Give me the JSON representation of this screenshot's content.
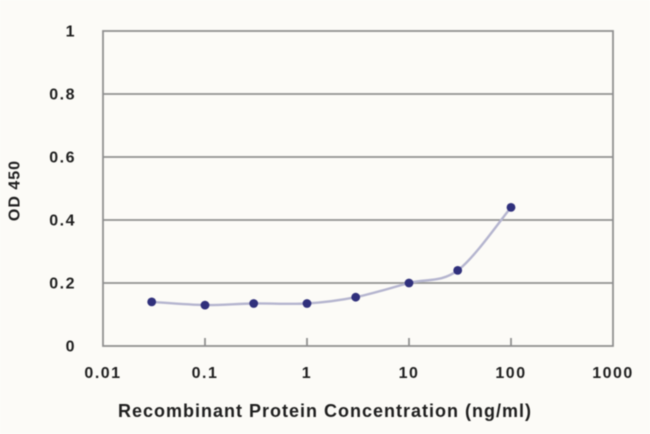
{
  "figure": {
    "background": "#fcfbf7"
  },
  "chart_data": {
    "type": "line",
    "title": "",
    "xlabel": "Recombinant Protein Concentration (ng/ml)",
    "ylabel": "OD 450",
    "x_scale": "log",
    "y_scale": "linear",
    "xlim": [
      0.01,
      1000
    ],
    "ylim": [
      0,
      1
    ],
    "x_ticks": [
      0.01,
      0.1,
      1,
      10,
      100,
      1000
    ],
    "x_tick_labels": [
      "0.01",
      "0.1",
      "1",
      "10",
      "100",
      "1000"
    ],
    "y_ticks": [
      0,
      0.2,
      0.4,
      0.6,
      0.8,
      1
    ],
    "y_tick_labels": [
      "0",
      "0.2",
      "0.4",
      "0.6",
      "0.8",
      "1"
    ],
    "grid": "horizontal",
    "legend": "none",
    "series": [
      {
        "name": "OD 450",
        "x": [
          0.03,
          0.1,
          0.3,
          1,
          3,
          10,
          30,
          100
        ],
        "y": [
          0.14,
          0.13,
          0.135,
          0.135,
          0.155,
          0.2,
          0.24,
          0.44
        ]
      }
    ],
    "colors": {
      "marker": "#30307c",
      "line": "#b5b5cf",
      "grid": "#909090",
      "axis": "#909090",
      "text": "#1f1f1f"
    }
  }
}
